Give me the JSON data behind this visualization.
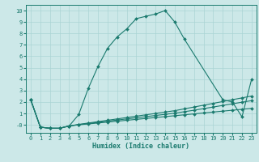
{
  "xlabel": "Humidex (Indice chaleur)",
  "xlim": [
    -0.5,
    23.5
  ],
  "ylim": [
    -0.7,
    10.5
  ],
  "yticks": [
    0,
    1,
    2,
    3,
    4,
    5,
    6,
    7,
    8,
    9,
    10
  ],
  "ytick_labels": [
    "-0",
    "1",
    "2",
    "3",
    "4",
    "5",
    "6",
    "7",
    "8",
    "9",
    "10"
  ],
  "xticks": [
    0,
    1,
    2,
    3,
    4,
    5,
    6,
    7,
    8,
    9,
    10,
    11,
    12,
    13,
    14,
    15,
    16,
    17,
    18,
    19,
    20,
    21,
    22,
    23
  ],
  "background_color": "#cce8e8",
  "grid_color": "#aad4d4",
  "line_color": "#1a7a6e",
  "s1_x": [
    0,
    1,
    2,
    3,
    4,
    5,
    6,
    7,
    8,
    9,
    10,
    11,
    12,
    13,
    14,
    15,
    16,
    20,
    21,
    22,
    23
  ],
  "s1_y": [
    2.2,
    -0.2,
    -0.3,
    -0.3,
    -0.1,
    0.9,
    3.2,
    5.1,
    6.7,
    7.7,
    8.4,
    9.3,
    9.5,
    9.7,
    10.0,
    9.0,
    7.5,
    2.2,
    2.0,
    0.7,
    4.0
  ],
  "s2_y": [
    2.2,
    -0.2,
    -0.3,
    -0.3,
    -0.1,
    0.0,
    0.08,
    0.16,
    0.24,
    0.32,
    0.4,
    0.48,
    0.56,
    0.64,
    0.72,
    0.8,
    0.88,
    0.96,
    1.04,
    1.12,
    1.2,
    1.28,
    1.36,
    1.44
  ],
  "s3_y": [
    2.2,
    -0.2,
    -0.3,
    -0.3,
    -0.1,
    0.02,
    0.12,
    0.22,
    0.32,
    0.42,
    0.52,
    0.62,
    0.72,
    0.82,
    0.92,
    1.02,
    1.15,
    1.28,
    1.42,
    1.56,
    1.7,
    1.84,
    1.98,
    2.12
  ],
  "s4_y": [
    2.2,
    -0.2,
    -0.3,
    -0.3,
    -0.1,
    0.04,
    0.16,
    0.28,
    0.4,
    0.52,
    0.64,
    0.76,
    0.88,
    1.0,
    1.12,
    1.24,
    1.4,
    1.56,
    1.72,
    1.88,
    2.04,
    2.2,
    2.36,
    2.52
  ]
}
